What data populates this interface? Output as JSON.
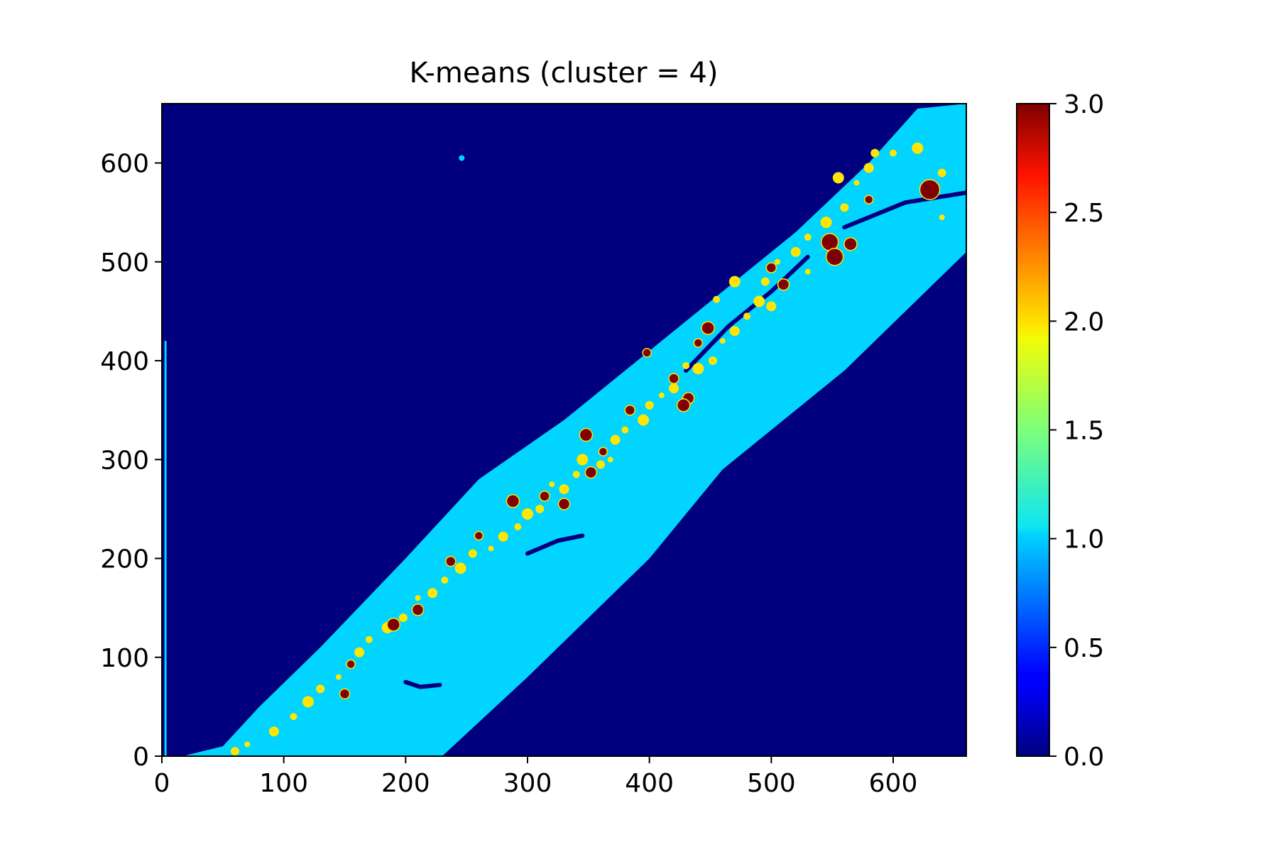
{
  "chart_data": {
    "type": "heatmap",
    "title": "K-means (cluster = 4)",
    "xlabel": "",
    "ylabel": "",
    "xlim": [
      0,
      660
    ],
    "ylim": [
      0,
      660
    ],
    "xticks": [
      0,
      100,
      200,
      300,
      400,
      500,
      600
    ],
    "yticks": [
      0,
      100,
      200,
      300,
      400,
      500,
      600
    ],
    "colormap": "jet",
    "colorbar": {
      "range": [
        0.0,
        3.0
      ],
      "ticks": [
        "0.0",
        "0.5",
        "1.0",
        "1.5",
        "2.0",
        "2.5",
        "3.0"
      ],
      "placement": "right"
    },
    "clusters": [
      {
        "value": 0,
        "color": "#00007f",
        "description": "background"
      },
      {
        "value": 1,
        "color": "#00d4ff",
        "description": "diagonal band"
      },
      {
        "value": 2,
        "color": "#ffe600",
        "description": "small blobs along band center"
      },
      {
        "value": 3,
        "color": "#7f0000",
        "description": "larger dark red spots"
      }
    ],
    "band": {
      "upper_edge": [
        [
          17,
          0
        ],
        [
          50,
          10
        ],
        [
          80,
          50
        ],
        [
          130,
          110
        ],
        [
          200,
          200
        ],
        [
          260,
          280
        ],
        [
          330,
          340
        ],
        [
          400,
          410
        ],
        [
          460,
          470
        ],
        [
          520,
          530
        ],
        [
          580,
          600
        ],
        [
          620,
          655
        ],
        [
          660,
          660
        ]
      ],
      "lower_edge": [
        [
          17,
          0
        ],
        [
          230,
          0
        ],
        [
          300,
          80
        ],
        [
          400,
          200
        ],
        [
          460,
          290
        ],
        [
          560,
          390
        ],
        [
          660,
          510
        ]
      ]
    },
    "spots_value_3": [
      [
        630,
        573
      ],
      [
        548,
        520
      ],
      [
        552,
        505
      ],
      [
        565,
        518
      ],
      [
        580,
        563
      ],
      [
        500,
        494
      ],
      [
        510,
        477
      ],
      [
        448,
        433
      ],
      [
        440,
        418
      ],
      [
        420,
        382
      ],
      [
        432,
        362
      ],
      [
        428,
        355
      ],
      [
        398,
        408
      ],
      [
        384,
        350
      ],
      [
        352,
        287
      ],
      [
        348,
        325
      ],
      [
        362,
        308
      ],
      [
        314,
        263
      ],
      [
        330,
        255
      ],
      [
        288,
        258
      ],
      [
        260,
        223
      ],
      [
        237,
        197
      ],
      [
        210,
        148
      ],
      [
        190,
        133
      ],
      [
        155,
        93
      ],
      [
        150,
        63
      ]
    ],
    "spots_value_2": [
      [
        640,
        545
      ],
      [
        640,
        590
      ],
      [
        620,
        615
      ],
      [
        600,
        610
      ],
      [
        580,
        595
      ],
      [
        570,
        580
      ],
      [
        560,
        555
      ],
      [
        545,
        540
      ],
      [
        530,
        525
      ],
      [
        520,
        510
      ],
      [
        505,
        500
      ],
      [
        495,
        480
      ],
      [
        490,
        460
      ],
      [
        480,
        445
      ],
      [
        470,
        430
      ],
      [
        460,
        420
      ],
      [
        452,
        400
      ],
      [
        440,
        392
      ],
      [
        430,
        395
      ],
      [
        420,
        372
      ],
      [
        410,
        365
      ],
      [
        400,
        355
      ],
      [
        395,
        340
      ],
      [
        380,
        330
      ],
      [
        372,
        320
      ],
      [
        368,
        300
      ],
      [
        360,
        295
      ],
      [
        345,
        300
      ],
      [
        340,
        285
      ],
      [
        330,
        270
      ],
      [
        320,
        275
      ],
      [
        310,
        250
      ],
      [
        300,
        245
      ],
      [
        292,
        232
      ],
      [
        280,
        222
      ],
      [
        270,
        210
      ],
      [
        255,
        205
      ],
      [
        245,
        190
      ],
      [
        232,
        178
      ],
      [
        222,
        165
      ],
      [
        210,
        160
      ],
      [
        198,
        140
      ],
      [
        185,
        130
      ],
      [
        170,
        118
      ],
      [
        162,
        105
      ],
      [
        145,
        80
      ],
      [
        130,
        68
      ],
      [
        120,
        55
      ],
      [
        108,
        40
      ],
      [
        92,
        25
      ],
      [
        70,
        12
      ],
      [
        60,
        5
      ],
      [
        470,
        480
      ],
      [
        455,
        462
      ],
      [
        500,
        455
      ],
      [
        530,
        490
      ],
      [
        585,
        610
      ],
      [
        555,
        585
      ]
    ],
    "gaps_value_0": [
      [
        [
          430,
          390
        ],
        [
          465,
          435
        ],
        [
          500,
          470
        ],
        [
          530,
          505
        ]
      ],
      [
        [
          560,
          535
        ],
        [
          610,
          560
        ],
        [
          660,
          570
        ]
      ],
      [
        [
          300,
          205
        ],
        [
          325,
          218
        ],
        [
          345,
          223
        ]
      ],
      [
        [
          200,
          75
        ],
        [
          212,
          70
        ],
        [
          228,
          72
        ]
      ]
    ],
    "stray": [
      [
        246,
        605
      ],
      [
        3,
        0
      ],
      [
        3,
        420
      ]
    ]
  }
}
